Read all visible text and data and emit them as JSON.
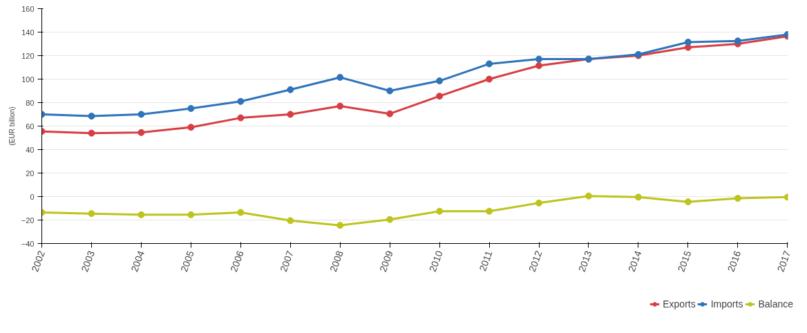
{
  "chart_data": {
    "type": "line",
    "ylabel": "(EUR billion)",
    "categories": [
      "2002",
      "2003",
      "2004",
      "2005",
      "2006",
      "2007",
      "2008",
      "2009",
      "2010",
      "2011",
      "2012",
      "2013",
      "2014",
      "2015",
      "2016",
      "2017"
    ],
    "series": [
      {
        "name": "Exports",
        "color": "#d63e43",
        "values": [
          55.5,
          54,
          54.5,
          59,
          67,
          70,
          77,
          70.5,
          85.5,
          100,
          111.5,
          117,
          120,
          127,
          130,
          136.5
        ]
      },
      {
        "name": "Imports",
        "color": "#2f73bb",
        "values": [
          70,
          68.5,
          70,
          75,
          81,
          91,
          101.5,
          90,
          98.5,
          113,
          117,
          117,
          121,
          131.5,
          132.5,
          138
        ]
      },
      {
        "name": "Balance",
        "color": "#bdc41d",
        "values": [
          -13.5,
          -14.5,
          -15.5,
          -15.5,
          -13.5,
          -20.5,
          -24.5,
          -19.5,
          -12.5,
          -12.5,
          -5.5,
          0.5,
          -0.5,
          -4.5,
          -1.5,
          -0.5
        ]
      }
    ],
    "ylim": [
      -40,
      160
    ],
    "yticks": [
      -40,
      -20,
      0,
      20,
      40,
      60,
      80,
      100,
      120,
      140,
      160
    ],
    "grid": "y",
    "legend": "bottom",
    "marker": "circle",
    "line_style": "solid"
  }
}
